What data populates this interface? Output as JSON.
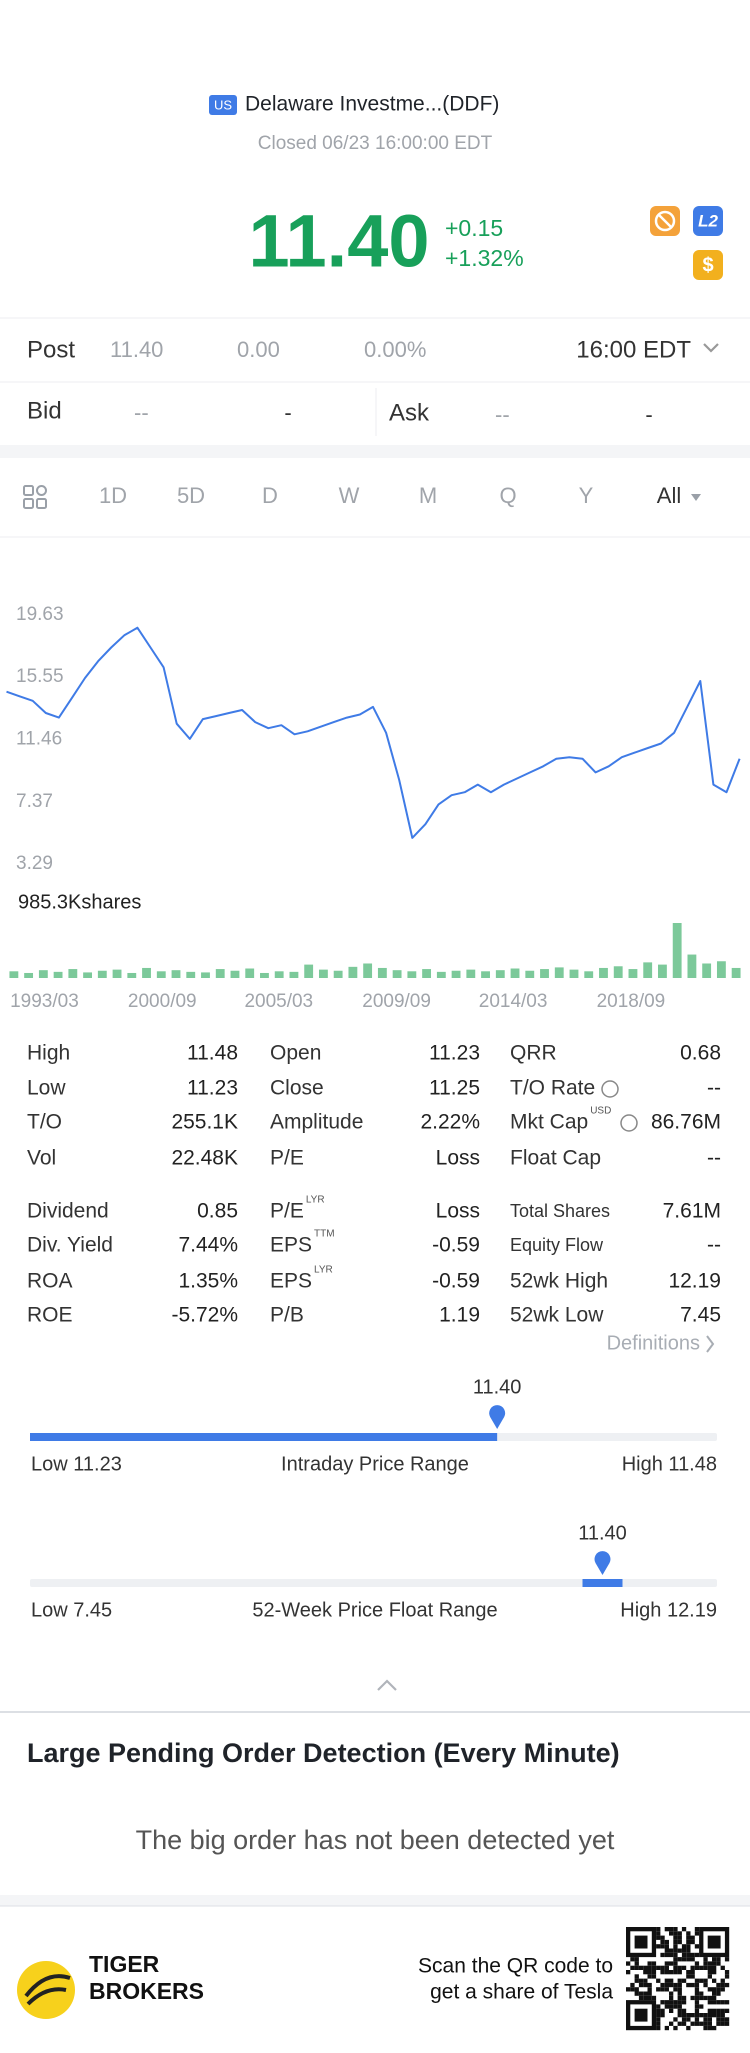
{
  "header": {
    "market": "US",
    "name": "Delaware Investme...(DDF)",
    "status": "Closed 06/23 16:00:00 EDT"
  },
  "quote": {
    "price": "11.40",
    "change": "+0.15",
    "change_pct": "+1.32%",
    "badges": [
      "L2",
      "$"
    ]
  },
  "post": {
    "label": "Post",
    "price": "11.40",
    "change": "0.00",
    "change_pct": "0.00%",
    "time": "16:00 EDT"
  },
  "bid_ask": {
    "bid_label": "Bid",
    "bid": "--",
    "bid_size": "-",
    "ask_label": "Ask",
    "ask": "--",
    "ask_size": "-"
  },
  "tabs": [
    "1D",
    "5D",
    "D",
    "W",
    "M",
    "Q",
    "Y",
    "All"
  ],
  "chart_data": {
    "type": "line",
    "color": "#3f7be6",
    "x": [
      0,
      1,
      2,
      3,
      4,
      5,
      6,
      7,
      8,
      9,
      10,
      11,
      12,
      13,
      14,
      15,
      16,
      17,
      18,
      19,
      20,
      21,
      22,
      23,
      24,
      25,
      26,
      27,
      28,
      29,
      30,
      31,
      32,
      33,
      34,
      35,
      36,
      37,
      38,
      39,
      40,
      41,
      42,
      43,
      44,
      45,
      46,
      47,
      48,
      49,
      50,
      51,
      52,
      53,
      54,
      55,
      56
    ],
    "values": [
      14.6,
      14.3,
      14.0,
      13.2,
      12.9,
      14.2,
      15.5,
      16.6,
      17.5,
      18.3,
      18.8,
      17.5,
      16.2,
      12.5,
      11.5,
      12.8,
      13.0,
      13.2,
      13.4,
      12.6,
      12.2,
      12.4,
      11.8,
      12.0,
      12.3,
      12.6,
      12.9,
      13.1,
      13.6,
      11.9,
      8.8,
      5.0,
      5.9,
      7.2,
      7.8,
      8.0,
      8.5,
      8.0,
      8.5,
      8.9,
      9.3,
      9.7,
      10.2,
      10.3,
      10.2,
      9.3,
      9.7,
      10.3,
      10.6,
      10.9,
      11.2,
      11.9,
      13.6,
      15.3,
      8.5,
      8.0,
      10.2
    ],
    "xlim": [
      0,
      56.3
    ],
    "ylim": [
      2.43,
      20.49
    ],
    "yticks": [
      19.63,
      15.55,
      11.46,
      7.37,
      3.29
    ],
    "xticks": [
      {
        "value": 2.9,
        "label": "1993/03"
      },
      {
        "value": 11.9,
        "label": "2000/09"
      },
      {
        "value": 20.8,
        "label": "2005/03"
      },
      {
        "value": 29.8,
        "label": "2009/09"
      },
      {
        "value": 38.7,
        "label": "2014/03"
      },
      {
        "value": 47.7,
        "label": "2018/09"
      }
    ],
    "volume": {
      "label": "985.3Kshares",
      "color": "#7cc99a",
      "ylim": [
        0,
        985.3
      ],
      "values": [
        120,
        90,
        140,
        110,
        160,
        100,
        130,
        150,
        90,
        180,
        120,
        140,
        110,
        100,
        160,
        130,
        170,
        90,
        120,
        110,
        240,
        150,
        130,
        200,
        260,
        180,
        140,
        120,
        160,
        110,
        130,
        150,
        120,
        140,
        170,
        130,
        160,
        190,
        150,
        120,
        180,
        210,
        160,
        280,
        240,
        985.3,
        420,
        260,
        300,
        180
      ]
    }
  },
  "stats": [
    [
      {
        "label": "High",
        "value": "11.48"
      },
      {
        "label": "Open",
        "value": "11.23"
      },
      {
        "label": "QRR",
        "value": "0.68"
      }
    ],
    [
      {
        "label": "Low",
        "value": "11.23"
      },
      {
        "label": "Close",
        "value": "11.25"
      },
      {
        "label": "T/O Rate",
        "value": "--"
      }
    ],
    [
      {
        "label": "T/O",
        "value": "255.1K"
      },
      {
        "label": "Amplitude",
        "value": "2.22%"
      },
      {
        "label": "Mkt Cap",
        "sup": "USD",
        "value": "86.76M"
      }
    ],
    [
      {
        "label": "Vol",
        "value": "22.48K"
      },
      {
        "label": "P/E",
        "value": "Loss"
      },
      {
        "label": "Float Cap",
        "value": "--"
      }
    ],
    [
      {
        "label": "Dividend",
        "value": "0.85"
      },
      {
        "label": "P/E",
        "sup": "LYR",
        "value": "Loss"
      },
      {
        "label": "Total Shares",
        "value": "7.61M"
      }
    ],
    [
      {
        "label": "Div. Yield",
        "value": "7.44%"
      },
      {
        "label": "EPS",
        "sup": "TTM",
        "value": "-0.59"
      },
      {
        "label": "Equity Flow",
        "value": "--"
      }
    ],
    [
      {
        "label": "ROA",
        "value": "1.35%"
      },
      {
        "label": "EPS",
        "sup": "LYR",
        "value": "-0.59"
      },
      {
        "label": "52wk High",
        "value": "12.19"
      }
    ],
    [
      {
        "label": "ROE",
        "value": "-5.72%"
      },
      {
        "label": "P/B",
        "value": "1.19"
      },
      {
        "label": "52wk Low",
        "value": "7.45"
      }
    ]
  ],
  "definitions": "Definitions",
  "ranges": [
    {
      "title": "Intraday Price Range",
      "low": 11.23,
      "high": 11.48,
      "value": 11.4,
      "value_label": "11.40",
      "low_label": "Low 11.23",
      "high_label": "High 11.48"
    },
    {
      "title": "52-Week Price Float Range",
      "low": 7.45,
      "high": 12.19,
      "value": 11.4,
      "value_label": "11.40",
      "low_label": "Low 7.45",
      "high_label": "High 12.19"
    }
  ],
  "detection": {
    "title": "Large Pending Order Detection (Every Minute)",
    "message": "The big order has not been detected yet"
  },
  "footer": {
    "brand": [
      "TIGER",
      "BROKERS"
    ],
    "promo": [
      "Scan the QR code to",
      "get a share of Tesla"
    ]
  }
}
